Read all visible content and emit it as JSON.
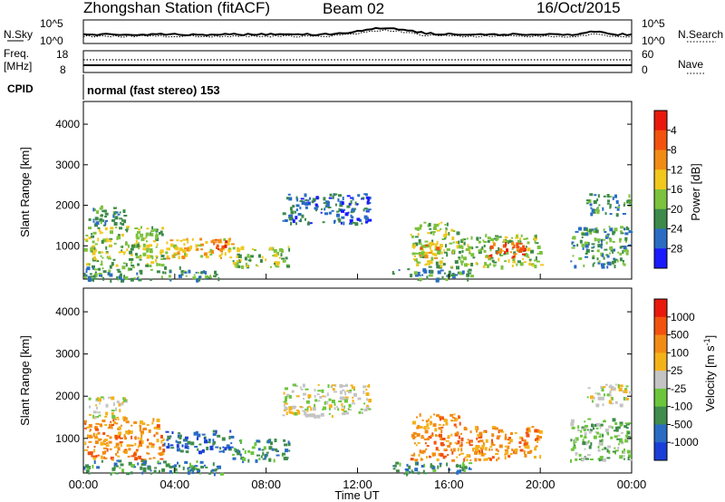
{
  "header": {
    "station": "Zhongshan Station (fitACF)",
    "beam": "Beam 02",
    "date": "16/Oct/2015"
  },
  "panels": {
    "nsky": {
      "label": "N.Sky",
      "right_label": "N.Search",
      "y_top": "10^5",
      "y_bottom": "10^0",
      "y_top_right": "10^5",
      "y_bottom_right": "10^0"
    },
    "freq": {
      "label1": "Freq.",
      "label2": "[MHz]",
      "right_label": "Nave",
      "y_top": "18",
      "y_bottom": "8",
      "y_top_right": "60",
      "y_bottom_right": "0"
    },
    "cpid": {
      "label": "CPID",
      "mode": "normal (fast stereo) 153"
    }
  },
  "chart_data": [
    {
      "type": "heatmap",
      "name": "power",
      "ylabel": "Slant Range [km]",
      "yticks": [
        "1000",
        "2000",
        "3000",
        "4000"
      ],
      "ylim": [
        180,
        4560
      ],
      "colorbar": {
        "label": "Power [dB]",
        "ticks": [
          "4",
          "8",
          "12",
          "16",
          "20",
          "24",
          "28"
        ],
        "colors": [
          "#1a1aff",
          "#2a6cc4",
          "#3d8a4a",
          "#7cc23e",
          "#f0c81e",
          "#f28b16",
          "#f2520e",
          "#e8190c"
        ]
      },
      "echo_regions": [
        {
          "t0": 0.2,
          "t1": 1.8,
          "r0": 1500,
          "r1": 2000,
          "level": 2
        },
        {
          "t0": 0.0,
          "t1": 3.5,
          "r0": 500,
          "r1": 1500,
          "level": 3
        },
        {
          "t0": 0.0,
          "t1": 6.0,
          "r0": 180,
          "r1": 500,
          "level": 2
        },
        {
          "t0": 3.5,
          "t1": 6.5,
          "r0": 700,
          "r1": 1200,
          "level": 4
        },
        {
          "t0": 5.5,
          "t1": 6.3,
          "r0": 850,
          "r1": 1200,
          "level": 6
        },
        {
          "t0": 6.5,
          "t1": 9.0,
          "r0": 500,
          "r1": 1000,
          "level": 3
        },
        {
          "t0": 8.7,
          "t1": 12.5,
          "r0": 1550,
          "r1": 2300,
          "level": 1
        },
        {
          "t0": 14.3,
          "t1": 16.5,
          "r0": 500,
          "r1": 1600,
          "level": 3
        },
        {
          "t0": 14.6,
          "t1": 15.5,
          "r0": 700,
          "r1": 1100,
          "level": 5
        },
        {
          "t0": 16.5,
          "t1": 20.0,
          "r0": 500,
          "r1": 1300,
          "level": 3
        },
        {
          "t0": 17.7,
          "t1": 19.3,
          "r0": 700,
          "r1": 1100,
          "level": 6
        },
        {
          "t0": 21.3,
          "t1": 23.9,
          "r0": 500,
          "r1": 1500,
          "level": 2
        },
        {
          "t0": 22.0,
          "t1": 23.9,
          "r0": 1800,
          "r1": 2300,
          "level": 2
        },
        {
          "t0": 13.5,
          "t1": 17.0,
          "r0": 180,
          "r1": 450,
          "level": 2
        }
      ]
    },
    {
      "type": "heatmap",
      "name": "velocity",
      "ylabel": "Slant Range [km]",
      "yticks": [
        "1000",
        "2000",
        "3000",
        "4000"
      ],
      "ylim": [
        180,
        4560
      ],
      "xlabel": "Time UT",
      "xticks": [
        "00:00",
        "04:00",
        "08:00",
        "12:00",
        "16:00",
        "20:00",
        "00:00"
      ],
      "xlim_hours": [
        0,
        24
      ],
      "colorbar": {
        "label": "Velocity [m s^-1]",
        "ticks": [
          "1000",
          "500",
          "100",
          "25",
          "-25",
          "-100",
          "-500",
          "-1000"
        ],
        "colors": [
          "#1a3fd8",
          "#2a6cc4",
          "#3f8c4c",
          "#6cc63c",
          "#c4c4c4",
          "#f4b21a",
          "#f28b16",
          "#f2520e",
          "#e8190c"
        ]
      },
      "echo_regions": [
        {
          "t0": 0.2,
          "t1": 1.8,
          "r0": 1500,
          "r1": 2000,
          "level": 4
        },
        {
          "t0": 0.0,
          "t1": 3.5,
          "r0": 500,
          "r1": 1500,
          "level": 6
        },
        {
          "t0": 0.0,
          "t1": 6.0,
          "r0": 180,
          "r1": 500,
          "level": 2
        },
        {
          "t0": 3.5,
          "t1": 6.5,
          "r0": 700,
          "r1": 1200,
          "level": 1
        },
        {
          "t0": 6.5,
          "t1": 9.0,
          "r0": 500,
          "r1": 1000,
          "level": 2
        },
        {
          "t0": 8.7,
          "t1": 12.5,
          "r0": 1550,
          "r1": 2300,
          "level": 4
        },
        {
          "t0": 14.3,
          "t1": 16.5,
          "r0": 500,
          "r1": 1600,
          "level": 6
        },
        {
          "t0": 16.5,
          "t1": 20.0,
          "r0": 500,
          "r1": 1300,
          "level": 6
        },
        {
          "t0": 21.3,
          "t1": 23.9,
          "r0": 500,
          "r1": 1500,
          "level": 3
        },
        {
          "t0": 22.0,
          "t1": 23.9,
          "r0": 1800,
          "r1": 2300,
          "level": 4
        },
        {
          "t0": 13.5,
          "t1": 17.0,
          "r0": 180,
          "r1": 450,
          "level": 2
        }
      ]
    }
  ]
}
